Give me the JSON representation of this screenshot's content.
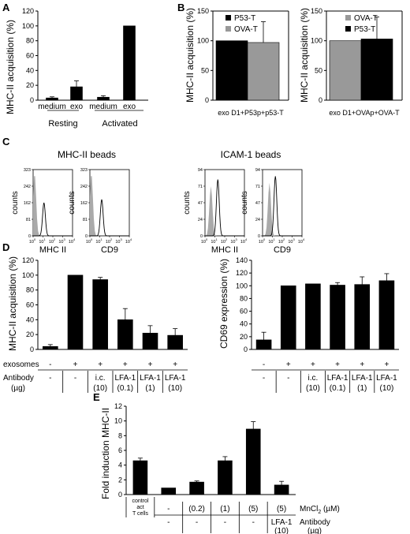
{
  "panels": {
    "A": "A",
    "B": "B",
    "C": "C",
    "D": "D",
    "E": "E"
  },
  "chart_data": [
    {
      "id": "A",
      "type": "bar",
      "ylabel": "MHC-II acquisition (%)",
      "ylim": [
        0,
        120
      ],
      "yticks": [
        0,
        20,
        40,
        60,
        80,
        100,
        120
      ],
      "categories": [
        "medium",
        "exo",
        "medium",
        "exo"
      ],
      "groups": [
        "Resting",
        "Activated"
      ],
      "values": [
        3,
        18,
        4,
        100
      ],
      "errors": [
        1.5,
        8,
        2,
        0
      ],
      "color": "#000000"
    },
    {
      "id": "B-left",
      "type": "bar",
      "ylabel": "MHC-II acquisition (%)",
      "ylim": [
        0,
        150
      ],
      "yticks": [
        0,
        50,
        100,
        150
      ],
      "xlabel": "exo D1+P53p+p53-T",
      "series": [
        {
          "name": "P53-T",
          "value": 100,
          "error": 0,
          "color": "#000000"
        },
        {
          "name": "OVA-T",
          "value": 97,
          "error": 35,
          "color": "#999999"
        }
      ]
    },
    {
      "id": "B-right",
      "type": "bar",
      "ylabel": "MHC-II acquisition (%)",
      "ylim": [
        0,
        150
      ],
      "yticks": [
        0,
        50,
        100,
        150
      ],
      "xlabel": "exo D1+OVAp+OVA-T",
      "series": [
        {
          "name": "OVA-T",
          "value": 100,
          "error": 0,
          "color": "#999999"
        },
        {
          "name": "P53-T",
          "value": 103,
          "error": 37,
          "color": "#000000"
        }
      ]
    },
    {
      "id": "C",
      "type": "histogram",
      "groups": [
        "MHC-II beads",
        "ICAM-1 beads"
      ],
      "ylabel": "counts",
      "xtick_base": "10",
      "xtick_exponents": [
        "0",
        "1",
        "2",
        "3",
        "4"
      ],
      "plots": [
        {
          "group": "MHC-II beads",
          "xlabel": "MHC II",
          "yticks": [
            "0",
            "81",
            "162",
            "242",
            "323"
          ],
          "peak_log": 1.1,
          "peak_rel": 0.5,
          "filled_peak_log": 0.15,
          "filled_rel": 0.95
        },
        {
          "group": "MHC-II beads",
          "xlabel": "CD9",
          "yticks": [
            "0",
            "81",
            "162",
            "242",
            "323"
          ],
          "peak_log": 1.2,
          "peak_rel": 0.55,
          "filled_peak_log": 0.15,
          "filled_rel": 0.95
        },
        {
          "group": "ICAM-1 beads",
          "xlabel": "MHC II",
          "yticks": [
            "0",
            "24",
            "47",
            "71",
            "94"
          ],
          "peak_log": 1.3,
          "peak_rel": 0.85,
          "filled_peak_log": 0.6,
          "filled_rel": 0.75
        },
        {
          "group": "ICAM-1 beads",
          "xlabel": "CD9",
          "yticks": [
            "0",
            "24",
            "47",
            "71",
            "94"
          ],
          "peak_log": 1.3,
          "peak_rel": 0.9,
          "filled_peak_log": 0.7,
          "filled_rel": 0.8
        }
      ]
    },
    {
      "id": "D-left",
      "type": "bar",
      "ylabel": "MHC-II acquisition (%)",
      "ylim": [
        0,
        120
      ],
      "yticks": [
        0,
        20,
        40,
        60,
        80,
        100,
        120
      ],
      "values": [
        4,
        100,
        94,
        40,
        22,
        19
      ],
      "errors": [
        2.5,
        0,
        3,
        15,
        10,
        9
      ],
      "color": "#000000"
    },
    {
      "id": "D-right",
      "type": "bar",
      "ylabel": "CD69 expression (%)",
      "ylim": [
        0,
        140
      ],
      "yticks": [
        0,
        20,
        40,
        60,
        80,
        100,
        120,
        140
      ],
      "values": [
        15,
        100,
        103,
        101,
        102,
        108
      ],
      "errors": [
        12,
        0,
        0,
        4,
        12,
        11
      ],
      "color": "#000000"
    },
    {
      "id": "E",
      "type": "bar",
      "ylabel": "Fold induction MHC-II",
      "ylim": [
        0,
        12
      ],
      "yticks": [
        0,
        2,
        4,
        6,
        8,
        10,
        12
      ],
      "values": [
        4.6,
        0.9,
        1.7,
        4.6,
        8.9,
        1.3
      ],
      "errors": [
        0.35,
        0,
        0.15,
        0.55,
        1.0,
        0.5
      ],
      "color": "#000000"
    }
  ],
  "d_table": {
    "row1_label": "exosomes",
    "row1": [
      "-",
      "+",
      "+",
      "+",
      "+",
      "+"
    ],
    "row2_label_line1": "Antibody",
    "row2_label_line2": "(µg)",
    "row2_line1": [
      "-",
      "-",
      "i.c.",
      "LFA-1",
      "LFA-1",
      "LFA-1"
    ],
    "row2_line2": [
      "",
      "",
      "(10)",
      "(0.1)",
      "(1)",
      "(10)"
    ]
  },
  "e_table": {
    "first_cell": [
      "control",
      "act",
      "T cells"
    ],
    "row1_label": "MnCl",
    "row1_label_sub": "2",
    "row1_label_unit": " (µM)",
    "row1": [
      "-",
      "(0.2)",
      "(1)",
      "(5)",
      "(5)"
    ],
    "row2_label_line1": "Antibody",
    "row2_label_line2": "(µg)",
    "row2_line1": [
      "-",
      "-",
      "-",
      "-",
      "LFA-1"
    ],
    "row2_line2": [
      "",
      "",
      "",
      "",
      "(10)"
    ]
  }
}
